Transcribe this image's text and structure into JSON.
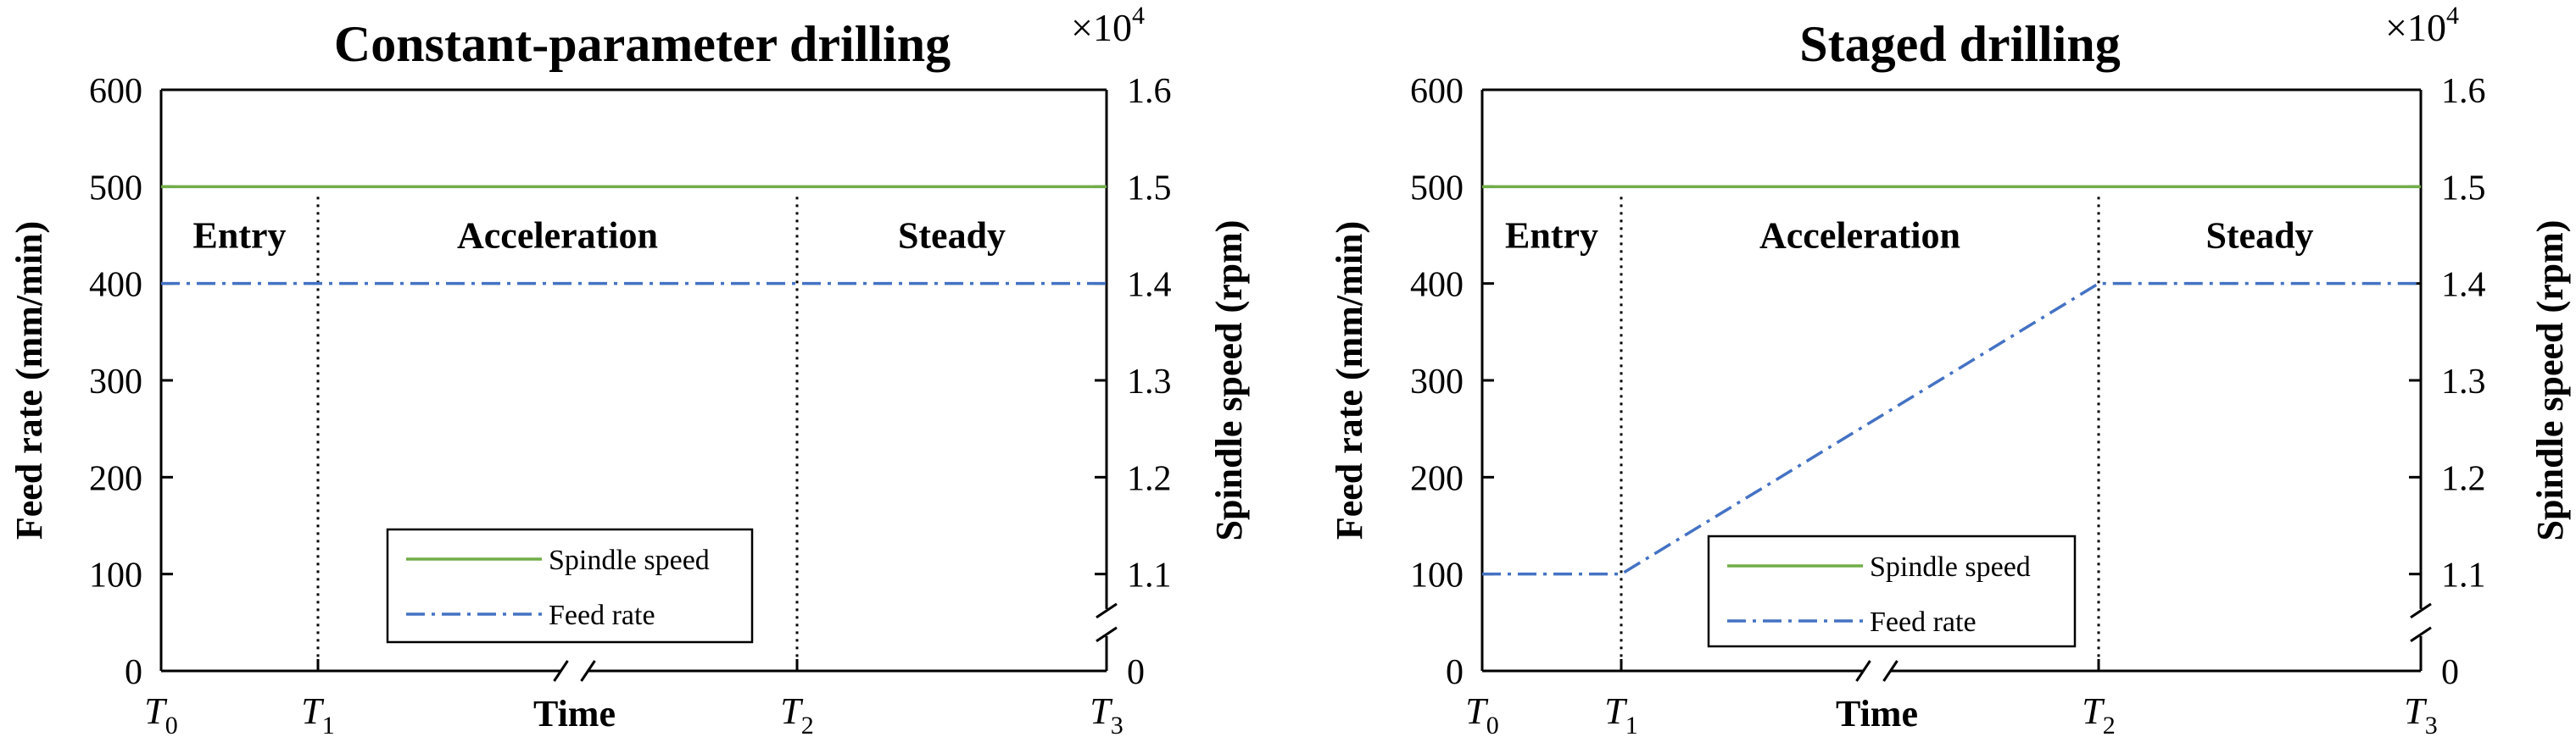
{
  "colors": {
    "spindle": "#70ad47",
    "feed": "#4472c4",
    "axis": "#000000"
  },
  "chart_data": [
    {
      "type": "line",
      "title": "Constant-parameter drilling",
      "xlabel": "Time",
      "ylabel": "Feed rate (mm/min)",
      "y2label": "Spindle speed (rpm)",
      "y2_multiplier_base": "×10",
      "y2_multiplier_exp": "4",
      "x_ticks": [
        {
          "main": "T",
          "sub": "0"
        },
        {
          "main": "T",
          "sub": "1"
        },
        {
          "main": "T",
          "sub": "2"
        },
        {
          "main": "T",
          "sub": "3"
        }
      ],
      "y_ticks": [
        "0",
        "100",
        "200",
        "300",
        "400",
        "500",
        "600"
      ],
      "y_tick_values": [
        0,
        100,
        200,
        300,
        400,
        500,
        600
      ],
      "y2_ticks": [
        "0",
        "1.1",
        "1.2",
        "1.3",
        "1.4",
        "1.5",
        "1.6"
      ],
      "ylim": [
        0,
        600
      ],
      "axis_breaks": true,
      "stages": [
        "Entry",
        "Acceleration",
        "Steady"
      ],
      "legend": [
        "Spindle speed",
        "Feed rate"
      ],
      "legend_position": "bottom-center",
      "series": [
        {
          "name": "Spindle speed",
          "axis": "right",
          "x": [
            "T0",
            "T3"
          ],
          "values": [
            15000,
            15000
          ],
          "style": "solid"
        },
        {
          "name": "Feed rate",
          "axis": "left",
          "x": [
            "T0",
            "T1",
            "T2",
            "T3"
          ],
          "values": [
            400,
            400,
            400,
            400
          ],
          "style": "dash-dot"
        }
      ]
    },
    {
      "type": "line",
      "title": "Staged drilling",
      "xlabel": "Time",
      "ylabel": "Feed rate (mm/min)",
      "y2label": "Spindle speed (rpm)",
      "y2_multiplier_base": "×10",
      "y2_multiplier_exp": "4",
      "x_ticks": [
        {
          "main": "T",
          "sub": "0"
        },
        {
          "main": "T",
          "sub": "1"
        },
        {
          "main": "T",
          "sub": "2"
        },
        {
          "main": "T",
          "sub": "3"
        }
      ],
      "y_ticks": [
        "0",
        "100",
        "200",
        "300",
        "400",
        "500",
        "600"
      ],
      "y_tick_values": [
        0,
        100,
        200,
        300,
        400,
        500,
        600
      ],
      "y2_ticks": [
        "0",
        "1.1",
        "1.2",
        "1.3",
        "1.4",
        "1.5",
        "1.6"
      ],
      "ylim": [
        0,
        600
      ],
      "axis_breaks": true,
      "stages": [
        "Entry",
        "Acceleration",
        "Steady"
      ],
      "legend": [
        "Spindle speed",
        "Feed rate"
      ],
      "legend_position": "bottom-center",
      "series": [
        {
          "name": "Spindle speed",
          "axis": "right",
          "x": [
            "T0",
            "T3"
          ],
          "values": [
            15000,
            15000
          ],
          "style": "solid"
        },
        {
          "name": "Feed rate",
          "axis": "left",
          "x": [
            "T0",
            "T1",
            "T2",
            "T3"
          ],
          "values": [
            100,
            100,
            400,
            400
          ],
          "style": "dash-dot"
        }
      ]
    }
  ]
}
